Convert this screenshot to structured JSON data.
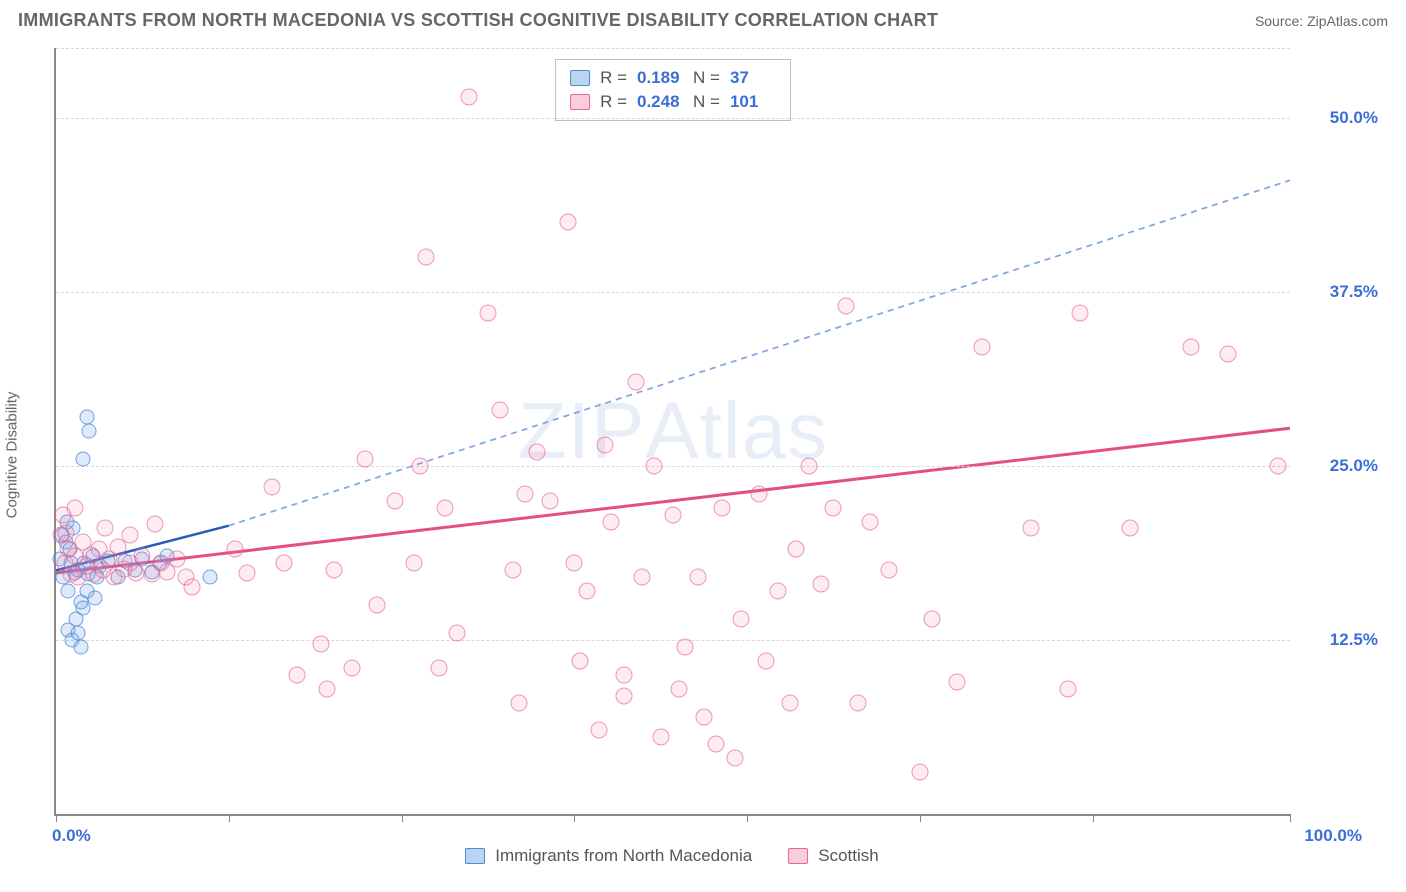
{
  "header": {
    "title": "IMMIGRANTS FROM NORTH MACEDONIA VS SCOTTISH COGNITIVE DISABILITY CORRELATION CHART",
    "source": "Source: ZipAtlas.com"
  },
  "watermark": {
    "left": "ZIP",
    "right": "Atlas"
  },
  "chart": {
    "type": "scatter",
    "background_color": "#ffffff",
    "grid_color": "#d8d8d8",
    "axis_color": "#888888",
    "label_color": "#666666",
    "tick_label_color": "#3b6fd6",
    "ylabel": "Cognitive Disability",
    "title_fontsize": 18,
    "tick_fontsize": 17,
    "xlim": [
      0,
      100
    ],
    "ylim": [
      0,
      55
    ],
    "xticks": [
      0,
      14,
      28,
      42,
      56,
      70,
      84,
      100
    ],
    "xtick_labels": {
      "0": "0.0%",
      "100": "100.0%"
    },
    "yticks": [
      12.5,
      25.0,
      37.5,
      50.0
    ],
    "ytick_labels": [
      "12.5%",
      "25.0%",
      "37.5%",
      "50.0%"
    ],
    "marker_radius_a": 7.5,
    "marker_radius_b": 8.5,
    "series": [
      {
        "key": "a",
        "label": "Immigrants from North Macedonia",
        "fill": "rgba(120,170,230,0.25)",
        "stroke": "rgba(70,130,210,0.7)",
        "R": "0.189",
        "N": "37",
        "trend": {
          "solid": [
            [
              0,
              17.5
            ],
            [
              14,
              20.7
            ]
          ],
          "dashed": [
            [
              14,
              20.7
            ],
            [
              100,
              45.5
            ]
          ],
          "color_solid": "#2a5db8",
          "color_dashed": "#7fa7e0",
          "width": 2.5
        },
        "points": [
          [
            0.3,
            18.3
          ],
          [
            0.6,
            17.0
          ],
          [
            0.8,
            19.5
          ],
          [
            1.0,
            16.0
          ],
          [
            1.2,
            18.0
          ],
          [
            1.5,
            17.3
          ],
          [
            1.0,
            13.2
          ],
          [
            1.3,
            12.5
          ],
          [
            1.6,
            14.0
          ],
          [
            1.8,
            13.0
          ],
          [
            2.0,
            12.0
          ],
          [
            2.2,
            14.8
          ],
          [
            0.5,
            20.0
          ],
          [
            0.9,
            21.0
          ],
          [
            1.1,
            19.0
          ],
          [
            1.4,
            20.5
          ],
          [
            1.8,
            17.5
          ],
          [
            2.3,
            18.0
          ],
          [
            2.6,
            17.2
          ],
          [
            3.0,
            18.5
          ],
          [
            3.3,
            17.0
          ],
          [
            2.2,
            25.5
          ],
          [
            2.5,
            28.5
          ],
          [
            2.7,
            27.5
          ],
          [
            3.6,
            17.8
          ],
          [
            4.2,
            18.2
          ],
          [
            5.0,
            17.0
          ],
          [
            5.6,
            18.2
          ],
          [
            6.4,
            17.5
          ],
          [
            7.0,
            18.3
          ],
          [
            7.8,
            17.4
          ],
          [
            8.4,
            18.0
          ],
          [
            2.0,
            15.2
          ],
          [
            2.5,
            16.0
          ],
          [
            3.2,
            15.5
          ],
          [
            12.5,
            17.0
          ],
          [
            9.0,
            18.5
          ]
        ]
      },
      {
        "key": "b",
        "label": "Scottish",
        "fill": "rgba(240,130,170,0.15)",
        "stroke": "rgba(230,90,140,0.6)",
        "R": "0.248",
        "N": "101",
        "trend": {
          "solid": [
            [
              0,
              17.3
            ],
            [
              100,
              27.7
            ]
          ],
          "dashed": null,
          "color_solid": "#e54d84",
          "width": 3
        },
        "points": [
          [
            0.4,
            20.0
          ],
          [
            0.7,
            18.0
          ],
          [
            1.0,
            19.0
          ],
          [
            1.2,
            17.2
          ],
          [
            1.5,
            18.5
          ],
          [
            1.8,
            17.0
          ],
          [
            2.2,
            19.5
          ],
          [
            2.5,
            17.8
          ],
          [
            2.8,
            18.6
          ],
          [
            3.1,
            17.2
          ],
          [
            3.5,
            19.0
          ],
          [
            3.8,
            17.5
          ],
          [
            4.3,
            18.3
          ],
          [
            4.7,
            17.0
          ],
          [
            5.0,
            19.2
          ],
          [
            5.5,
            17.6
          ],
          [
            6.0,
            18.0
          ],
          [
            6.5,
            17.3
          ],
          [
            7.0,
            18.5
          ],
          [
            7.8,
            17.2
          ],
          [
            8.5,
            18.0
          ],
          [
            9.0,
            17.4
          ],
          [
            9.8,
            18.3
          ],
          [
            10.5,
            17.0
          ],
          [
            11.0,
            16.3
          ],
          [
            4.0,
            20.5
          ],
          [
            6.0,
            20.0
          ],
          [
            8.0,
            20.8
          ],
          [
            0.6,
            21.5
          ],
          [
            1.5,
            22.0
          ],
          [
            0.8,
            20.2
          ],
          [
            14.5,
            19.0
          ],
          [
            15.5,
            17.3
          ],
          [
            17.5,
            23.5
          ],
          [
            18.5,
            18.0
          ],
          [
            19.5,
            10.0
          ],
          [
            21.5,
            12.2
          ],
          [
            22.0,
            9.0
          ],
          [
            22.5,
            17.5
          ],
          [
            24.0,
            10.5
          ],
          [
            25.0,
            25.5
          ],
          [
            26.0,
            15.0
          ],
          [
            27.5,
            22.5
          ],
          [
            29.0,
            18.0
          ],
          [
            29.5,
            25.0
          ],
          [
            30.0,
            40.0
          ],
          [
            31.0,
            10.5
          ],
          [
            31.5,
            22.0
          ],
          [
            32.5,
            13.0
          ],
          [
            33.5,
            51.5
          ],
          [
            35.0,
            36.0
          ],
          [
            36.0,
            29.0
          ],
          [
            37.0,
            17.5
          ],
          [
            37.5,
            8.0
          ],
          [
            38.0,
            23.0
          ],
          [
            39.0,
            26.0
          ],
          [
            40.0,
            22.5
          ],
          [
            41.5,
            42.5
          ],
          [
            42.0,
            18.0
          ],
          [
            42.5,
            11.0
          ],
          [
            43.0,
            16.0
          ],
          [
            44.0,
            6.0
          ],
          [
            44.5,
            26.5
          ],
          [
            45.0,
            21.0
          ],
          [
            46.0,
            10.0
          ],
          [
            47.0,
            31.0
          ],
          [
            47.5,
            17.0
          ],
          [
            48.5,
            25.0
          ],
          [
            49.0,
            5.5
          ],
          [
            50.0,
            21.5
          ],
          [
            50.5,
            9.0
          ],
          [
            51.0,
            12.0
          ],
          [
            52.0,
            17.0
          ],
          [
            52.5,
            7.0
          ],
          [
            54.0,
            22.0
          ],
          [
            55.0,
            4.0
          ],
          [
            55.5,
            14.0
          ],
          [
            57.0,
            23.0
          ],
          [
            57.5,
            11.0
          ],
          [
            58.5,
            16.0
          ],
          [
            59.5,
            8.0
          ],
          [
            60.0,
            19.0
          ],
          [
            61.0,
            25.0
          ],
          [
            62.0,
            16.5
          ],
          [
            63.0,
            22.0
          ],
          [
            64.0,
            36.5
          ],
          [
            65.0,
            8.0
          ],
          [
            66.0,
            21.0
          ],
          [
            67.5,
            17.5
          ],
          [
            70.0,
            3.0
          ],
          [
            71.0,
            14.0
          ],
          [
            73.0,
            9.5
          ],
          [
            75.0,
            33.5
          ],
          [
            79.0,
            20.5
          ],
          [
            82.0,
            9.0
          ],
          [
            83.0,
            36.0
          ],
          [
            87.0,
            20.5
          ],
          [
            92.0,
            33.5
          ],
          [
            95.0,
            33.0
          ],
          [
            99.0,
            25.0
          ],
          [
            46.0,
            8.5
          ],
          [
            53.5,
            5.0
          ]
        ]
      }
    ]
  },
  "bottom_legend": [
    {
      "swatch": "a",
      "label": "Immigrants from North Macedonia"
    },
    {
      "swatch": "b",
      "label": "Scottish"
    }
  ]
}
